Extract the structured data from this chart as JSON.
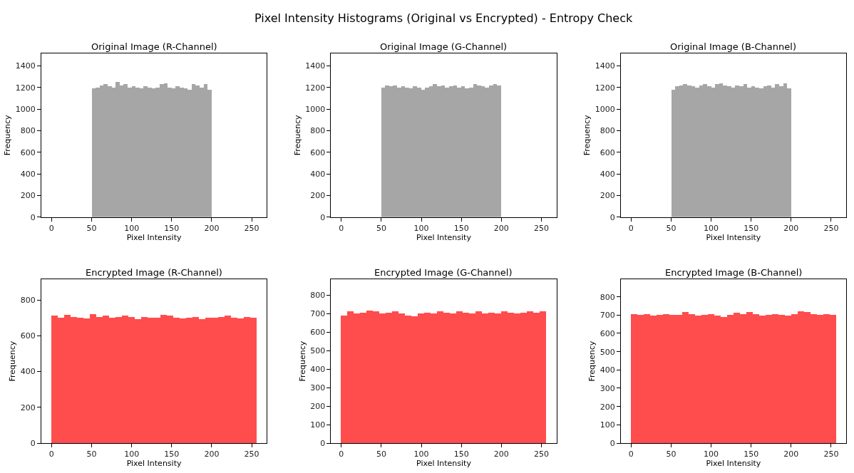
{
  "chart_data": [
    {
      "type": "histogram",
      "title": "Original Image (R-Channel)",
      "annotations": [
        "Pixel Intensity Histograms (Original vs Encrypted) - Entropy Check"
      ],
      "xlabel": "Pixel Intensity",
      "ylabel": "Frequency",
      "color": "#a6a6a6",
      "bins": [
        50,
        55,
        60,
        65,
        70,
        75,
        80,
        85,
        90,
        95,
        100,
        105,
        110,
        115,
        120,
        125,
        130,
        135,
        140,
        145,
        150,
        155,
        160,
        165,
        170,
        175,
        180,
        185,
        190,
        195,
        200
      ],
      "values": [
        1190,
        1200,
        1220,
        1230,
        1210,
        1200,
        1250,
        1220,
        1230,
        1200,
        1210,
        1200,
        1190,
        1210,
        1200,
        1190,
        1200,
        1230,
        1240,
        1200,
        1190,
        1210,
        1200,
        1190,
        1180,
        1230,
        1220,
        1200,
        1230,
        1180
      ],
      "xlim": [
        -12.8,
        268.8
      ],
      "xticks": [
        0,
        50,
        100,
        150,
        200,
        250
      ],
      "ylim": [
        0,
        1515
      ],
      "yticks": [
        0,
        200,
        400,
        600,
        800,
        1000,
        1200,
        1400
      ]
    },
    {
      "type": "histogram",
      "title": "Original Image (G-Channel)",
      "xlabel": "Pixel Intensity",
      "ylabel": "Frequency",
      "color": "#a6a6a6",
      "bins": [
        50,
        55,
        60,
        65,
        70,
        75,
        80,
        85,
        90,
        95,
        100,
        105,
        110,
        115,
        120,
        125,
        130,
        135,
        140,
        145,
        150,
        155,
        160,
        165,
        170,
        175,
        180,
        185,
        190,
        195,
        200
      ],
      "values": [
        1200,
        1220,
        1210,
        1220,
        1200,
        1210,
        1200,
        1190,
        1210,
        1200,
        1180,
        1200,
        1210,
        1230,
        1210,
        1220,
        1200,
        1210,
        1220,
        1200,
        1210,
        1190,
        1200,
        1230,
        1220,
        1210,
        1200,
        1220,
        1230,
        1220
      ],
      "xlim": [
        -12.8,
        268.8
      ],
      "xticks": [
        0,
        50,
        100,
        150,
        200,
        250
      ],
      "ylim": [
        0,
        1515
      ],
      "yticks": [
        0,
        200,
        400,
        600,
        800,
        1000,
        1200,
        1400
      ]
    },
    {
      "type": "histogram",
      "title": "Original Image (B-Channel)",
      "xlabel": "Pixel Intensity",
      "ylabel": "Frequency",
      "color": "#a6a6a6",
      "bins": [
        50,
        55,
        60,
        65,
        70,
        75,
        80,
        85,
        90,
        95,
        100,
        105,
        110,
        115,
        120,
        125,
        130,
        135,
        140,
        145,
        150,
        155,
        160,
        165,
        170,
        175,
        180,
        185,
        190,
        195,
        200
      ],
      "values": [
        1180,
        1210,
        1220,
        1230,
        1220,
        1210,
        1200,
        1220,
        1230,
        1210,
        1200,
        1230,
        1240,
        1220,
        1210,
        1200,
        1220,
        1210,
        1230,
        1200,
        1210,
        1200,
        1190,
        1210,
        1220,
        1200,
        1230,
        1210,
        1240,
        1190
      ],
      "xlim": [
        -12.8,
        268.8
      ],
      "xticks": [
        0,
        50,
        100,
        150,
        200,
        250
      ],
      "ylim": [
        0,
        1515
      ],
      "yticks": [
        0,
        200,
        400,
        600,
        800,
        1000,
        1200,
        1400
      ]
    },
    {
      "type": "histogram",
      "title": "Encrypted Image (R-Channel)",
      "xlabel": "Pixel Intensity",
      "ylabel": "Frequency",
      "color": "#ff4d4d",
      "bins": [
        0,
        8,
        16,
        24,
        32,
        40,
        48,
        56,
        64,
        72,
        80,
        88,
        96,
        104,
        112,
        120,
        128,
        136,
        144,
        152,
        160,
        168,
        176,
        184,
        192,
        200,
        208,
        216,
        224,
        232,
        240,
        248,
        256
      ],
      "values": [
        710,
        700,
        715,
        705,
        700,
        695,
        720,
        705,
        710,
        700,
        705,
        710,
        705,
        690,
        705,
        700,
        700,
        715,
        710,
        700,
        695,
        700,
        705,
        690,
        700,
        700,
        705,
        710,
        700,
        695,
        705,
        700
      ],
      "xlim": [
        -12.8,
        268.8
      ],
      "xticks": [
        0,
        50,
        100,
        150,
        200,
        250
      ],
      "ylim": [
        0,
        915
      ],
      "yticks": [
        0,
        200,
        400,
        600,
        800
      ]
    },
    {
      "type": "histogram",
      "title": "Encrypted Image (G-Channel)",
      "xlabel": "Pixel Intensity",
      "ylabel": "Frequency",
      "color": "#ff4d4d",
      "bins": [
        0,
        8,
        16,
        24,
        32,
        40,
        48,
        56,
        64,
        72,
        80,
        88,
        96,
        104,
        112,
        120,
        128,
        136,
        144,
        152,
        160,
        168,
        176,
        184,
        192,
        200,
        208,
        216,
        224,
        232,
        240,
        248,
        256
      ],
      "values": [
        690,
        710,
        700,
        705,
        715,
        710,
        700,
        705,
        710,
        700,
        690,
        685,
        700,
        705,
        700,
        710,
        705,
        700,
        710,
        705,
        700,
        710,
        700,
        705,
        700,
        710,
        705,
        700,
        705,
        710,
        705,
        710
      ],
      "xlim": [
        -12.8,
        268.8
      ],
      "xticks": [
        0,
        50,
        100,
        150,
        200,
        250
      ],
      "ylim": [
        0,
        885
      ],
      "yticks": [
        0,
        100,
        200,
        300,
        400,
        500,
        600,
        700,
        800
      ]
    },
    {
      "type": "histogram",
      "title": "Encrypted Image (B-Channel)",
      "xlabel": "Pixel Intensity",
      "ylabel": "Frequency",
      "color": "#ff4d4d",
      "bins": [
        0,
        8,
        16,
        24,
        32,
        40,
        48,
        56,
        64,
        72,
        80,
        88,
        96,
        104,
        112,
        120,
        128,
        136,
        144,
        152,
        160,
        168,
        176,
        184,
        192,
        200,
        208,
        216,
        224,
        232,
        240,
        248,
        256
      ],
      "values": [
        705,
        700,
        705,
        695,
        700,
        705,
        700,
        700,
        715,
        705,
        695,
        700,
        705,
        695,
        690,
        700,
        710,
        705,
        715,
        705,
        695,
        700,
        705,
        700,
        695,
        705,
        720,
        715,
        705,
        700,
        705,
        700
      ],
      "xlim": [
        -12.8,
        268.8
      ],
      "xticks": [
        0,
        50,
        100,
        150,
        200,
        250
      ],
      "ylim": [
        0,
        895
      ],
      "yticks": [
        0,
        100,
        200,
        300,
        400,
        500,
        600,
        700,
        800
      ]
    }
  ]
}
